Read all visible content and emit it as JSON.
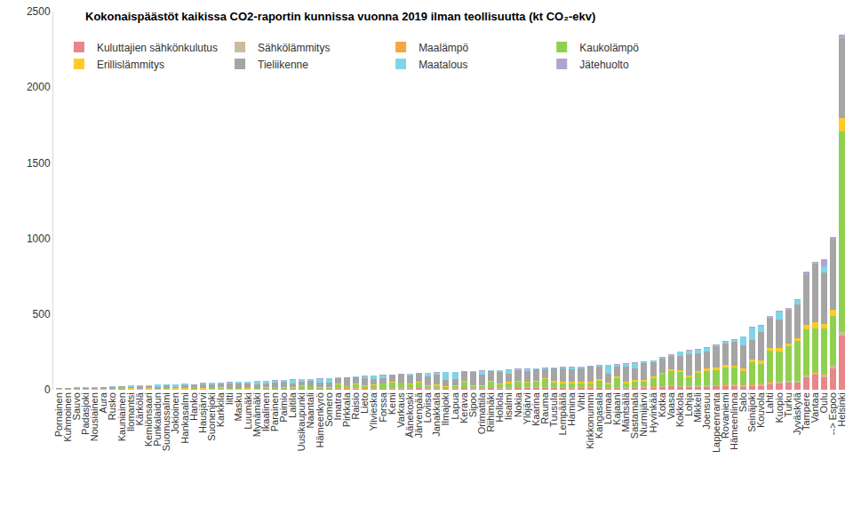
{
  "chart_data": {
    "type": "bar",
    "title": "Kokonaispäästöt kaikissa CO2-raportin kunnissa vuonna 2019 ilman teollisuutta (kt CO₂-ekv)",
    "stacked": true,
    "grid": false,
    "legend": "top-left",
    "ylim": [
      0,
      2500
    ],
    "yticks": [
      0,
      500,
      1000,
      1500,
      2000,
      2500
    ],
    "categories": [
      "Pornainen",
      "Kuhmoinen",
      "Sauvo",
      "Padasjoki",
      "Nousiainen",
      "Aura",
      "Rusko",
      "Kauniainen",
      "Ilomantsi",
      "Kärkölä",
      "Kemiönsaari",
      "Punkalaidun",
      "Suomussalmi",
      "Jokioinen",
      "Hankasalmi",
      "Hanko",
      "Hausjärvi",
      "Suonenjoki",
      "Karkkila",
      "Iitti",
      "Masku",
      "Luumäki",
      "Mynämäki",
      "Ikaalinen",
      "Parainen",
      "Paimio",
      "Laitila",
      "Uusikaupunki",
      "Naantali",
      "Hämeenkyrö",
      "Somero",
      "Imatra",
      "Pirkkala",
      "Raisio",
      "Lieto",
      "Ylivieska",
      "Forssa",
      "Kemi",
      "Varkaus",
      "Äänekoski",
      "Järvenpää",
      "Loviisa",
      "Janakkala",
      "Ilmajoki",
      "Lapua",
      "Kerava",
      "Sipoo",
      "Orimattila",
      "Riihimäki",
      "Hollola",
      "Iisalmi",
      "Nokia",
      "Ylöjärvi",
      "Kaarina",
      "Rauma",
      "Tuusula",
      "Lempäälä",
      "Hamina",
      "Vihti",
      "Kirkkonummi",
      "Kangasala",
      "Loimaa",
      "Kajaani",
      "Mäntsälä",
      "Sastamala",
      "Nurmijärvi",
      "Hyvinkää",
      "Kotka",
      "Vaasa",
      "Kokkola",
      "Lohja",
      "Mikkeli",
      "Joensuu",
      "Lappeenranta",
      "Rovaniemi",
      "Hämeenlinna",
      "Salo",
      "Seinäjoki",
      "Kouvola",
      "Lahti",
      "Kuopio",
      "Turku",
      "Jyväskylä",
      "Tampere",
      "Vantaa",
      "Oulu",
      "--> Espoo",
      "Helsinki"
    ],
    "series": [
      {
        "name": "Kuluttajien sähkönkulutus",
        "color": "#e8868a",
        "values": [
          1,
          1,
          1,
          1,
          1.2,
          1.5,
          1.5,
          4,
          1.5,
          1.5,
          2,
          1.5,
          2,
          1.5,
          1.5,
          3,
          2,
          2,
          2.5,
          2,
          2.5,
          2,
          2.5,
          3,
          3.5,
          3,
          3,
          4,
          4,
          3,
          3,
          6,
          5,
          6,
          5,
          5,
          5,
          6,
          6,
          5,
          9,
          5,
          5,
          4,
          5,
          9,
          7,
          5,
          9,
          7,
          7,
          9,
          9,
          10,
          13,
          11,
          10,
          7,
          9,
          11,
          10,
          7,
          12,
          8,
          9,
          13,
          14,
          16,
          22,
          17,
          15,
          18,
          20,
          22,
          23,
          24,
          20,
          22,
          26,
          38,
          40,
          48,
          45,
          80,
          100,
          85,
          140,
          360
        ]
      },
      {
        "name": "Sähkölämmitys",
        "color": "#c8bd9c",
        "values": [
          1,
          1.5,
          1.5,
          1.5,
          1.5,
          1.5,
          1.5,
          2.5,
          2,
          1.5,
          3,
          2,
          2.5,
          2,
          2,
          2,
          2.5,
          2,
          2.5,
          2.5,
          2.5,
          2.5,
          3,
          3,
          3.5,
          3,
          3,
          3,
          3,
          3,
          3.5,
          3,
          3,
          3,
          3.5,
          4,
          3,
          3,
          3,
          4,
          4,
          4.5,
          5,
          4,
          4,
          4,
          5,
          5,
          4,
          5.5,
          5,
          5,
          6,
          6,
          5,
          6,
          6,
          5,
          7,
          8,
          7,
          6,
          6,
          7,
          7,
          8,
          6,
          6,
          7,
          7,
          9,
          9,
          9,
          8,
          9,
          9,
          11,
          10,
          12,
          11,
          11,
          10,
          13,
          14,
          13,
          15,
          20,
          20
        ]
      },
      {
        "name": "Maalämpö",
        "color": "#f7a541",
        "values": [
          0.3,
          0.3,
          0.3,
          0.3,
          0.4,
          0.4,
          0.5,
          0.5,
          0.3,
          0.3,
          0.5,
          0.4,
          0.3,
          0.5,
          0.4,
          0.3,
          0.6,
          0.4,
          0.5,
          0.5,
          0.7,
          0.5,
          0.6,
          0.7,
          0.8,
          0.8,
          0.6,
          0.7,
          0.8,
          0.8,
          0.8,
          0.5,
          1,
          0.8,
          1,
          0.8,
          0.6,
          0.5,
          0.5,
          0.7,
          1.2,
          0.9,
          1,
          0.8,
          0.8,
          1,
          1.5,
          1,
          1,
          1.4,
          1,
          1.3,
          1.5,
          1.5,
          1,
          1.8,
          1.8,
          1,
          2,
          2,
          2,
          1.2,
          1,
          1.6,
          1.5,
          2.5,
          1.8,
          1,
          1.5,
          1.5,
          2.5,
          2,
          2,
          2,
          1.5,
          2,
          2.5,
          2,
          2.5,
          2,
          2,
          2,
          2.5,
          3,
          3,
          3,
          6,
          5
        ]
      },
      {
        "name": "Kaukolämpö",
        "color": "#8fd14f",
        "values": [
          0.5,
          1,
          0.5,
          1.5,
          1,
          1.5,
          1,
          8,
          3,
          2,
          2,
          1.5,
          5,
          4,
          2,
          12,
          2,
          6,
          8,
          4,
          4,
          2,
          4,
          6,
          8,
          6,
          8,
          15,
          14,
          6,
          6,
          25,
          18,
          25,
          15,
          20,
          30,
          40,
          35,
          25,
          35,
          12,
          15,
          8,
          15,
          40,
          10,
          12,
          40,
          20,
          30,
          35,
          30,
          35,
          50,
          30,
          25,
          30,
          25,
          22,
          40,
          20,
          60,
          25,
          35,
          30,
          55,
          80,
          95,
          90,
          55,
          80,
          95,
          100,
          115,
          110,
          90,
          150,
          130,
          210,
          200,
          230,
          260,
          300,
          290,
          300,
          320,
          1320
        ]
      },
      {
        "name": "Erillislämmitys",
        "color": "#ffc928",
        "values": [
          1.5,
          2,
          2,
          2,
          2,
          2,
          2,
          2,
          3,
          2.5,
          3,
          3,
          3.5,
          2.5,
          3,
          3,
          3,
          3,
          3,
          3,
          3,
          3,
          3.5,
          4,
          4,
          4,
          4,
          4,
          4,
          4,
          5,
          4,
          4,
          4,
          5,
          5,
          4,
          4,
          5,
          6,
          5,
          7,
          7,
          6,
          6,
          5,
          8,
          8,
          6,
          8,
          7,
          7,
          8,
          7,
          7,
          9,
          8,
          9,
          10,
          10,
          9,
          10,
          8,
          10,
          11,
          12,
          9,
          9,
          10,
          11,
          14,
          14,
          14,
          12,
          16,
          14,
          18,
          15,
          22,
          16,
          20,
          16,
          20,
          30,
          40,
          30,
          40,
          90
        ]
      },
      {
        "name": "Tieliikenne",
        "color": "#a5a5a5",
        "values": [
          6,
          5,
          6,
          7,
          7,
          8,
          12,
          6,
          10,
          16,
          11,
          8,
          14,
          9,
          20,
          15,
          26,
          20,
          25,
          28,
          30,
          33,
          24,
          26,
          27,
          34,
          22,
          28,
          34,
          32,
          30,
          38,
          50,
          45,
          45,
          35,
          35,
          45,
          50,
          55,
          52,
          60,
          68,
          40,
          40,
          60,
          85,
          68,
          65,
          78,
          55,
          72,
          70,
          76,
          60,
          85,
          90,
          85,
          90,
          98,
          82,
          60,
          65,
          100,
          75,
          108,
          95,
          95,
          90,
          95,
          140,
          115,
          110,
          145,
          140,
          155,
          150,
          130,
          190,
          200,
          190,
          225,
          220,
          330,
          390,
          340,
          465,
          530
        ]
      },
      {
        "name": "Maatalous",
        "color": "#82d3e6",
        "values": [
          1.5,
          2.5,
          4,
          2.5,
          4.5,
          4.5,
          3,
          0.1,
          7,
          5,
          9,
          16,
          7,
          15,
          10,
          0.5,
          7,
          11,
          5,
          9,
          8,
          11,
          19,
          16,
          14,
          13,
          26,
          13,
          10,
          24,
          28,
          3,
          2,
          2,
          15,
          23,
          18,
          1,
          3,
          10,
          1,
          20,
          12,
          53,
          47,
          0.5,
          6,
          26,
          2,
          10,
          27,
          6,
          13,
          4,
          6,
          2,
          6,
          12,
          9,
          4,
          9,
          58,
          14,
          20,
          38,
          8,
          10,
          4,
          5,
          28,
          22,
          27,
          25,
          6,
          10,
          15,
          58,
          80,
          40,
          5,
          52,
          2,
          30,
          3,
          1,
          40,
          1,
          2
        ]
      },
      {
        "name": "Jätehuolto",
        "color": "#b0a3d0",
        "values": [
          0.4,
          0.5,
          0.5,
          0.5,
          0.5,
          0.6,
          0.6,
          0.8,
          1,
          1,
          1,
          1,
          1,
          1,
          1,
          1.5,
          1,
          1,
          1.5,
          1,
          1.3,
          1,
          1.4,
          1.3,
          1.5,
          1.2,
          1.4,
          2,
          2,
          1.5,
          1.7,
          2.5,
          2,
          2.2,
          2.5,
          2.2,
          2.4,
          2.5,
          2.5,
          2.3,
          2.8,
          2.6,
          2,
          2.2,
          2.2,
          2.5,
          2.5,
          2,
          3,
          2.1,
          3,
          2.7,
          2.5,
          2.5,
          3,
          3.2,
          3.2,
          3,
          3,
          3,
          3,
          3.8,
          4,
          3.4,
          3.5,
          3.5,
          4.2,
          4,
          4.5,
          5.5,
          4.5,
          5,
          5,
          5,
          5.5,
          6,
          5.5,
          6,
          7.5,
          8,
          10,
          7,
          9.5,
          20,
          8,
          47,
          18,
          23
        ]
      }
    ]
  }
}
